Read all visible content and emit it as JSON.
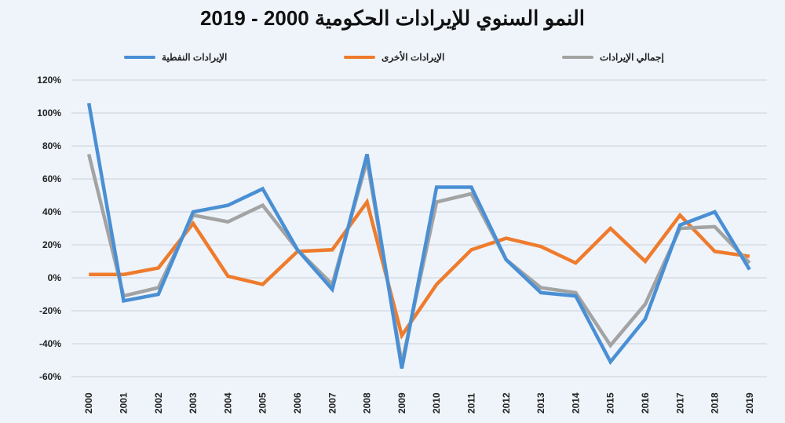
{
  "chart_data": {
    "type": "line",
    "title": "النمو السنوي للإيرادات الحكومية 2000 - 2019",
    "xlabel": "",
    "ylabel": "",
    "ylim": [
      -60,
      120
    ],
    "yticks": [
      "-60%",
      "-40%",
      "-20%",
      "0%",
      "20%",
      "40%",
      "60%",
      "80%",
      "100%",
      "120%"
    ],
    "grid": true,
    "legend_position": "top",
    "categories": [
      "2000",
      "2001",
      "2002",
      "2003",
      "2004",
      "2005",
      "2006",
      "2007",
      "2008",
      "2009",
      "2010",
      "2011",
      "2012",
      "2013",
      "2014",
      "2015",
      "2016",
      "2017",
      "2018",
      "2019"
    ],
    "series": [
      {
        "name": "الإيرادات النفطية",
        "color": "#4a8fd4",
        "values": [
          106,
          -14,
          -10,
          40,
          44,
          54,
          17,
          -7,
          75,
          -55,
          55,
          55,
          11,
          -9,
          -11,
          -51,
          -25,
          32,
          40,
          5
        ]
      },
      {
        "name": "الإيرادات الأخرى",
        "color": "#ef7b2c",
        "values": [
          2,
          2,
          6,
          33,
          1,
          -4,
          16,
          17,
          46,
          -35,
          -4,
          17,
          24,
          19,
          9,
          30,
          10,
          38,
          16,
          13
        ]
      },
      {
        "name": "إجمالي الإيرادات",
        "color": "#a3a3a3",
        "values": [
          75,
          -11,
          -6,
          38,
          34,
          44,
          17,
          -4,
          71,
          -52,
          46,
          51,
          11,
          -6,
          -9,
          -41,
          -16,
          30,
          31,
          9
        ]
      }
    ]
  }
}
